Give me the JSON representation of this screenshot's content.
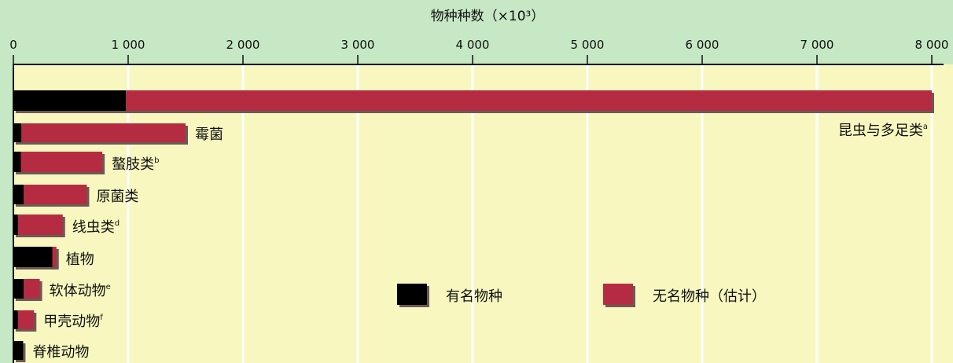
{
  "chart_data": {
    "type": "bar",
    "orientation": "horizontal",
    "stacked": true,
    "title": "物种种数（×10³）",
    "xlim": [
      0,
      8000
    ],
    "xticks": [
      0,
      1000,
      2000,
      3000,
      4000,
      5000,
      6000,
      7000,
      8000
    ],
    "xtick_labels": [
      "0",
      "1 000",
      "2 000",
      "3 000",
      "4 000",
      "5 000",
      "6 000",
      "7 000",
      "8 000"
    ],
    "grid": true,
    "legend_position": "bottom-right",
    "categories": [
      {
        "name": "昆虫与多足类",
        "sup": "a"
      },
      {
        "name": "霉菌",
        "sup": ""
      },
      {
        "name": "螯肢类",
        "sup": "b"
      },
      {
        "name": "原菌类",
        "sup": ""
      },
      {
        "name": "线虫类",
        "sup": "d"
      },
      {
        "name": "植物",
        "sup": ""
      },
      {
        "name": "软体动物",
        "sup": "e"
      },
      {
        "name": "甲壳动物",
        "sup": "f"
      },
      {
        "name": "脊椎动物",
        "sup": ""
      }
    ],
    "series": [
      {
        "name": "有名物种",
        "color": "#000000",
        "values": [
          980,
          70,
          65,
          90,
          40,
          340,
          90,
          40,
          85
        ]
      },
      {
        "name": "无名物种（估计）",
        "color": "#b52c42",
        "values": [
          7020,
          1430,
          710,
          550,
          390,
          35,
          140,
          140,
          0
        ]
      }
    ]
  }
}
